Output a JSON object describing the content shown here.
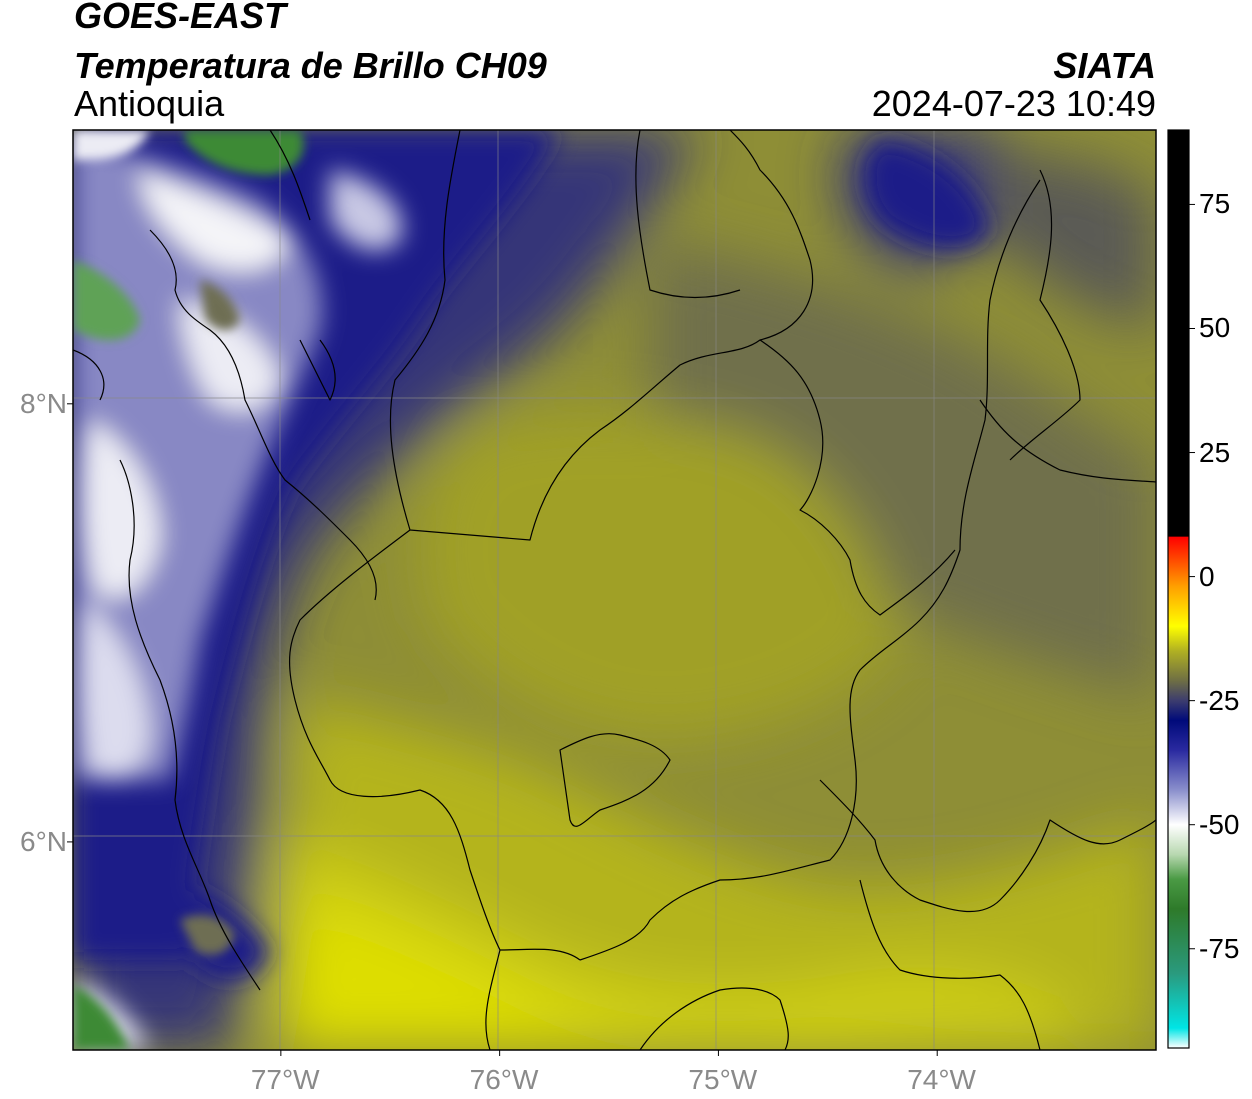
{
  "header": {
    "satellite": "GOES-EAST",
    "product": "Temperatura de Brillo CH09",
    "region": "Antioquia",
    "brand": "SIATA",
    "timestamp": "2024-07-23 10:49"
  },
  "map": {
    "lon_range": [
      -77.95,
      -73.0
    ],
    "lat_range": [
      5.05,
      9.25
    ],
    "lat_ticks": [
      {
        "value": 8,
        "label": "8°N"
      },
      {
        "value": 6,
        "label": "6°N"
      }
    ],
    "lon_ticks": [
      {
        "value": -77,
        "label": "77°W"
      },
      {
        "value": -76,
        "label": "76°W"
      },
      {
        "value": -75,
        "label": "75°W"
      },
      {
        "value": -74,
        "label": "74°W"
      }
    ],
    "gridlines": true
  },
  "colorbar": {
    "range": [
      -95,
      90
    ],
    "ticks": [
      {
        "value": 75,
        "label": "75"
      },
      {
        "value": 50,
        "label": "50"
      },
      {
        "value": 25,
        "label": "25"
      },
      {
        "value": 0,
        "label": "0"
      },
      {
        "value": -25,
        "label": "-25"
      },
      {
        "value": -50,
        "label": "-50"
      },
      {
        "value": -75,
        "label": "-75"
      }
    ],
    "stops": [
      {
        "value": -95,
        "color": "#ffffff"
      },
      {
        "value": -91,
        "color": "#00e5e5"
      },
      {
        "value": -80,
        "color": "#2a9a7e"
      },
      {
        "value": -67,
        "color": "#2e7a2a"
      },
      {
        "value": -61,
        "color": "#4a9a44"
      },
      {
        "value": -56,
        "color": "#b8d8b0"
      },
      {
        "value": -50,
        "color": "#ffffff"
      },
      {
        "value": -43,
        "color": "#8a8fcc"
      },
      {
        "value": -35,
        "color": "#2a2aa0"
      },
      {
        "value": -29,
        "color": "#000a7a"
      },
      {
        "value": -25,
        "color": "#3c3c6e"
      },
      {
        "value": -21,
        "color": "#6e6e44"
      },
      {
        "value": -15,
        "color": "#b0b022"
      },
      {
        "value": -10,
        "color": "#ffff00"
      },
      {
        "value": -2,
        "color": "#ffa000"
      },
      {
        "value": 5,
        "color": "#ff3000"
      },
      {
        "value": 8,
        "color": "#ff0000"
      },
      {
        "value": 8.1,
        "color": "#000000"
      },
      {
        "value": 90,
        "color": "#000000"
      }
    ]
  }
}
